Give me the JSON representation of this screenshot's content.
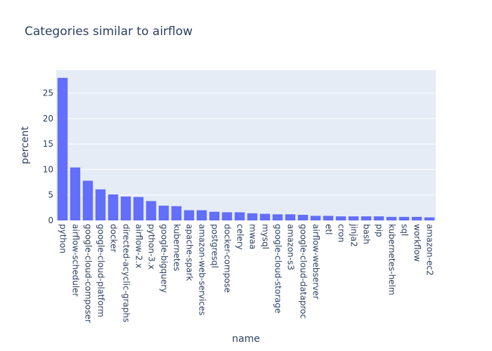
{
  "chart_data": {
    "type": "bar",
    "title": "Categories similar to airflow",
    "xlabel": "name",
    "ylabel": "percent",
    "ylim": [
      0,
      29.5
    ],
    "yticks": [
      0,
      5,
      10,
      15,
      20,
      25
    ],
    "grid": true,
    "bar_color": "#636efa",
    "plot_bgcolor": "#e5ecf6",
    "categories": [
      "python",
      "airflow-scheduler",
      "google-cloud-composer",
      "google-cloud-platform",
      "docker",
      "directed-acyclic-graphs",
      "airflow-2.x",
      "python-3.x",
      "google-bigquery",
      "kubernetes",
      "apache-spark",
      "amazon-web-services",
      "postgresql",
      "docker-compose",
      "celery",
      "mwaa",
      "mysql",
      "google-cloud-storage",
      "amazon-s3",
      "google-cloud-dataproc",
      "airflow-webserver",
      "etl",
      "cron",
      "jinja2",
      "bash",
      "pip",
      "kubernetes-helm",
      "sql",
      "workflow",
      "amazon-ec2"
    ],
    "values": [
      28.0,
      10.4,
      7.8,
      6.1,
      5.1,
      4.7,
      4.6,
      3.8,
      2.9,
      2.8,
      2.0,
      2.0,
      1.7,
      1.6,
      1.6,
      1.4,
      1.3,
      1.2,
      1.2,
      1.1,
      0.9,
      0.9,
      0.8,
      0.8,
      0.8,
      0.8,
      0.7,
      0.7,
      0.7,
      0.6
    ]
  }
}
